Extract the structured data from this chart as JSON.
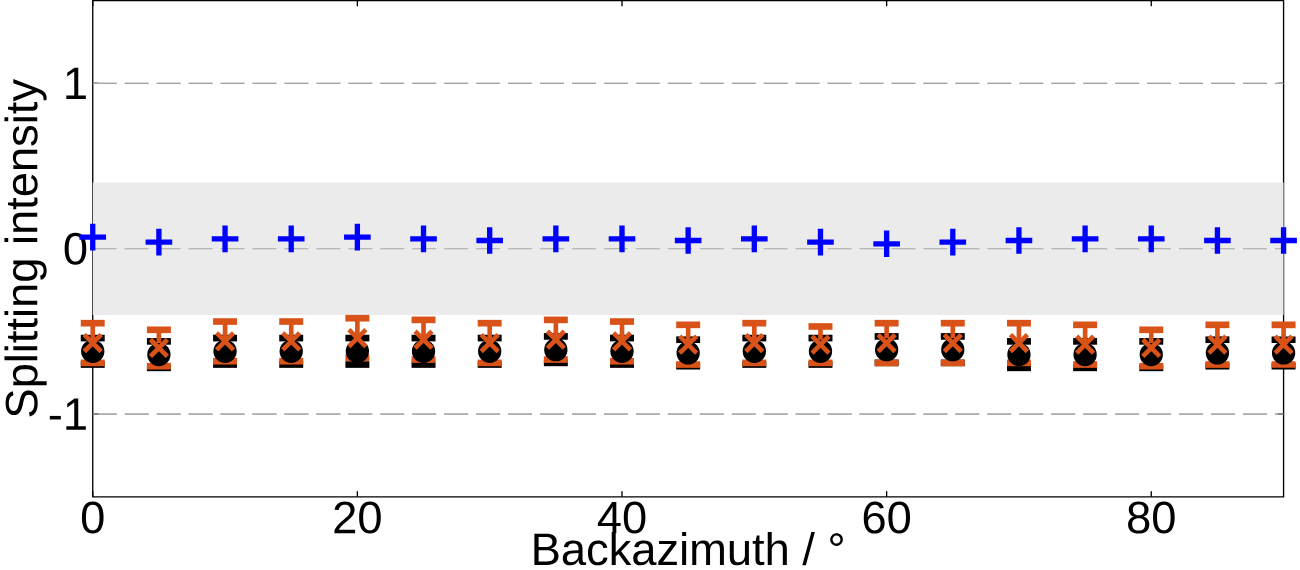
{
  "chart_data": {
    "type": "scatter",
    "xlabel": "Backazimuth / °",
    "ylabel": "Splitting intensity",
    "x": [
      0,
      5,
      10,
      15,
      20,
      25,
      30,
      35,
      40,
      45,
      50,
      55,
      60,
      65,
      70,
      75,
      80,
      85,
      90
    ],
    "series": [
      {
        "color": "#000000",
        "marker": "circle",
        "values": [
          -0.62,
          -0.64,
          -0.62,
          -0.62,
          -0.62,
          -0.62,
          -0.62,
          -0.61,
          -0.62,
          -0.63,
          -0.62,
          -0.62,
          -0.61,
          -0.61,
          -0.64,
          -0.64,
          -0.64,
          -0.63,
          -0.63
        ],
        "errors": [
          0.08,
          0.08,
          0.08,
          0.08,
          0.08,
          0.08,
          0.08,
          0.08,
          0.08,
          0.08,
          0.08,
          0.08,
          0.08,
          0.08,
          0.08,
          0.08,
          0.08,
          0.08,
          0.08
        ]
      },
      {
        "color": "#d95319",
        "marker": "cross",
        "values": [
          -0.57,
          -0.6,
          -0.56,
          -0.56,
          -0.54,
          -0.55,
          -0.57,
          -0.55,
          -0.56,
          -0.58,
          -0.57,
          -0.58,
          -0.57,
          -0.57,
          -0.57,
          -0.58,
          -0.6,
          -0.58,
          -0.58
        ],
        "errors": [
          0.12,
          0.11,
          0.12,
          0.12,
          0.12,
          0.12,
          0.12,
          0.12,
          0.12,
          0.12,
          0.12,
          0.11,
          0.12,
          0.12,
          0.12,
          0.12,
          0.11,
          0.12,
          0.12
        ]
      },
      {
        "color": "#0000ff",
        "marker": "cross",
        "values": [
          0.07,
          0.04,
          0.06,
          0.06,
          0.07,
          0.06,
          0.05,
          0.06,
          0.06,
          0.05,
          0.06,
          0.04,
          0.03,
          0.04,
          0.05,
          0.06,
          0.06,
          0.05,
          0.05
        ]
      }
    ],
    "xlim": [
      0,
      90
    ],
    "ylim": [
      -1.5,
      1.5
    ],
    "xticks": [
      0,
      20,
      40,
      60,
      80
    ],
    "yticks": [
      -1,
      0,
      1
    ],
    "grid": "y",
    "line_style": "dashed",
    "bands": [
      {
        "axis": "y",
        "from": -0.4,
        "to": 0.4,
        "color": "#ebebeb"
      }
    ]
  }
}
